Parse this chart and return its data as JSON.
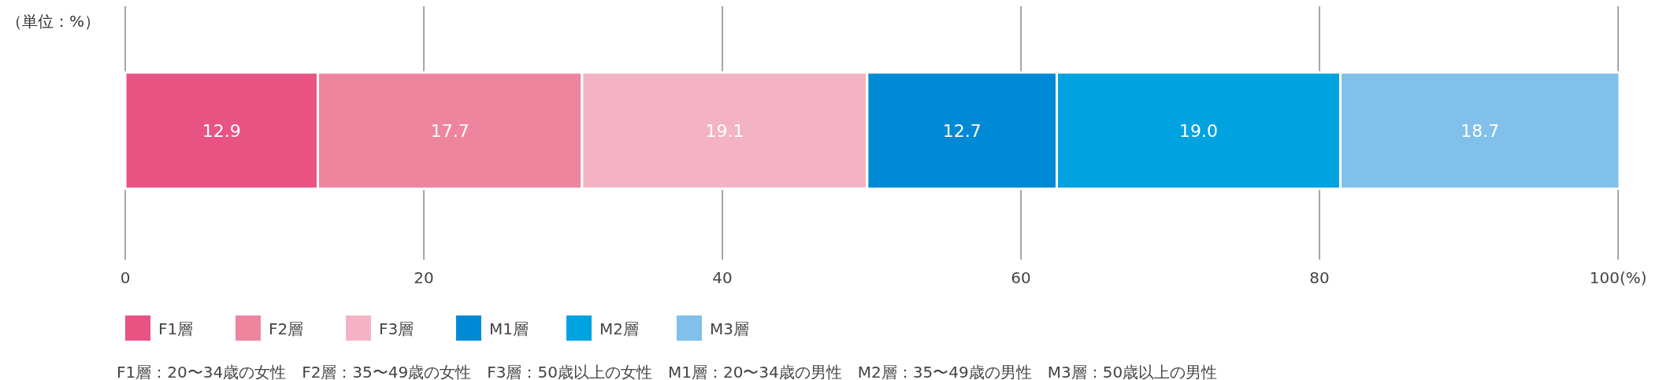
{
  "chart_data": {
    "type": "bar",
    "orientation": "horizontal",
    "stacked": true,
    "categories": [
      null
    ],
    "series": [
      {
        "name": "F1層",
        "color": "#e85383",
        "values": [
          12.9
        ],
        "value_labels": [
          "12.9"
        ]
      },
      {
        "name": "F2層",
        "color": "#ee859f",
        "values": [
          17.7
        ],
        "value_labels": [
          "17.7"
        ]
      },
      {
        "name": "F3層",
        "color": "#f4b3c4",
        "values": [
          19.1
        ],
        "value_labels": [
          "19.1"
        ]
      },
      {
        "name": "M1層",
        "color": "#0089d5",
        "values": [
          12.7
        ],
        "value_labels": [
          "12.7"
        ]
      },
      {
        "name": "M2層",
        "color": "#00a2e0",
        "values": [
          19.0
        ],
        "value_labels": [
          "19.0"
        ]
      },
      {
        "name": "M3層",
        "color": "#80c0ea",
        "values": [
          18.7
        ],
        "value_labels": [
          "18.7"
        ]
      }
    ],
    "xlim": [
      0,
      100.1
    ],
    "xticks": [
      0,
      20,
      40,
      60,
      80,
      {
        "value": 100,
        "label": "100(%)"
      }
    ],
    "grid": "x",
    "legend": "bottom",
    "annotations": [
      "（単位：%）",
      "F1層：20〜34歳の女性　F2層：35〜49歳の女性　F3層：50歳以上の女性　M1層：20〜34歳の男性　M2層：35〜49歳の男性　M3層：50歳以上の男性"
    ]
  }
}
